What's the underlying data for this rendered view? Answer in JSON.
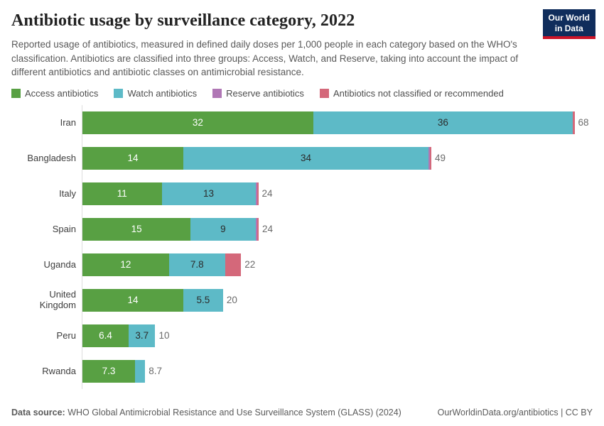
{
  "header": {
    "title": "Antibiotic usage by surveillance category, 2022",
    "subtitle": "Reported usage of antibiotics, measured in defined daily doses per 1,000 people in each category based on the WHO's classification. Antibiotics are classified into three groups: Access, Watch, and Reserve, taking into account the impact of different antibiotics and antibiotic classes on antimicrobial resistance."
  },
  "logo": {
    "line1": "Our World",
    "line2": "in Data",
    "bg_color": "#102d5c",
    "accent_color": "#cd1428"
  },
  "legend": {
    "items": [
      {
        "series": "access",
        "label": "Access antibiotics",
        "color": "#58a043"
      },
      {
        "series": "watch",
        "label": "Watch antibiotics",
        "color": "#5dbac7"
      },
      {
        "series": "reserve",
        "label": "Reserve antibiotics",
        "color": "#b077b5"
      },
      {
        "series": "not_classified",
        "label": "Antibiotics not classified or recommended",
        "color": "#d4687a"
      }
    ]
  },
  "chart_data": {
    "type": "bar",
    "orientation": "horizontal",
    "stacked": true,
    "xlim": [
      0,
      68
    ],
    "unit": "defined daily doses per 1,000 people",
    "series_names": [
      "Access antibiotics",
      "Watch antibiotics",
      "Reserve antibiotics",
      "Antibiotics not classified or recommended"
    ],
    "series_colors": {
      "access": "#58a043",
      "watch": "#5dbac7",
      "reserve": "#b077b5",
      "not_classified": "#d4687a"
    },
    "value_label_colors": {
      "access": "#ffffff",
      "watch": "#2b2b2b",
      "reserve": "",
      "not_classified": ""
    },
    "rows": [
      {
        "country": "Iran",
        "total": "68",
        "segments": [
          {
            "series": "access",
            "value": 32,
            "label": "32"
          },
          {
            "series": "watch",
            "value": 36,
            "label": "36"
          },
          {
            "series": "not_classified",
            "value": 0.25,
            "label": ""
          }
        ]
      },
      {
        "country": "Bangladesh",
        "total": "49",
        "segments": [
          {
            "series": "access",
            "value": 14,
            "label": "14"
          },
          {
            "series": "watch",
            "value": 34,
            "label": "34"
          },
          {
            "series": "reserve",
            "value": 0.15,
            "label": ""
          },
          {
            "series": "not_classified",
            "value": 0.15,
            "label": ""
          }
        ]
      },
      {
        "country": "Italy",
        "total": "24",
        "segments": [
          {
            "series": "access",
            "value": 11,
            "label": "11"
          },
          {
            "series": "watch",
            "value": 13,
            "label": "13"
          },
          {
            "series": "reserve",
            "value": 0.2,
            "label": ""
          },
          {
            "series": "not_classified",
            "value": 0.1,
            "label": ""
          }
        ]
      },
      {
        "country": "Spain",
        "total": "24",
        "segments": [
          {
            "series": "access",
            "value": 15,
            "label": "15"
          },
          {
            "series": "watch",
            "value": 9,
            "label": "9"
          },
          {
            "series": "reserve",
            "value": 0.1,
            "label": ""
          },
          {
            "series": "not_classified",
            "value": 0.25,
            "label": ""
          }
        ]
      },
      {
        "country": "Uganda",
        "total": "22",
        "segments": [
          {
            "series": "access",
            "value": 12,
            "label": "12"
          },
          {
            "series": "watch",
            "value": 7.8,
            "label": "7.8"
          },
          {
            "series": "not_classified",
            "value": 2.2,
            "label": ""
          }
        ]
      },
      {
        "country": "United Kingdom",
        "total": "20",
        "segments": [
          {
            "series": "access",
            "value": 14,
            "label": "14"
          },
          {
            "series": "watch",
            "value": 5.5,
            "label": "5.5"
          }
        ]
      },
      {
        "country": "Peru",
        "total": "10",
        "segments": [
          {
            "series": "access",
            "value": 6.4,
            "label": "6.4"
          },
          {
            "series": "watch",
            "value": 3.7,
            "label": "3.7"
          }
        ]
      },
      {
        "country": "Rwanda",
        "total": "8.7",
        "segments": [
          {
            "series": "access",
            "value": 7.3,
            "label": "7.3"
          },
          {
            "series": "watch",
            "value": 1.4,
            "label": ""
          }
        ]
      }
    ]
  },
  "footer": {
    "source_label": "Data source:",
    "source_text": " WHO Global Antimicrobial Resistance and Use Surveillance System (GLASS) (2024)",
    "credit": "OurWorldinData.org/antibiotics | CC BY"
  }
}
